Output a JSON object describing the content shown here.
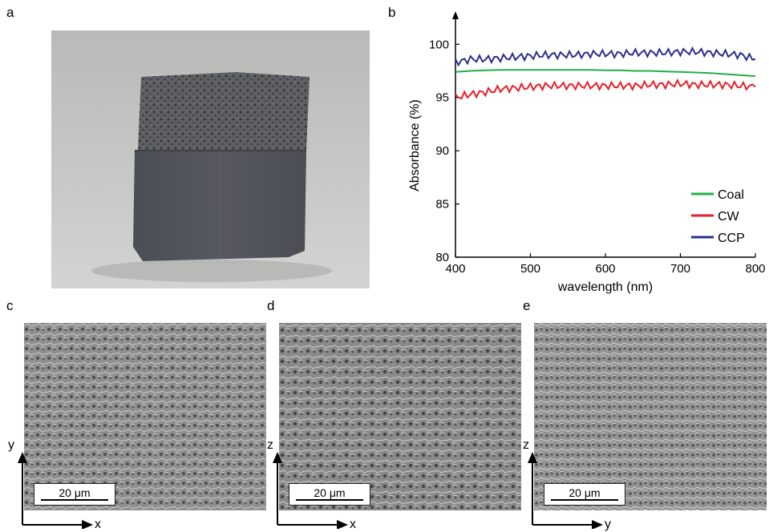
{
  "panels": {
    "a": {
      "label": "a"
    },
    "b": {
      "label": "b"
    },
    "c": {
      "label": "c",
      "scale": "20 μm",
      "axis_v": "y",
      "axis_h": "x"
    },
    "d": {
      "label": "d",
      "scale": "20 μm",
      "axis_v": "z",
      "axis_h": "x"
    },
    "e": {
      "label": "e",
      "scale": "20 μm",
      "axis_v": "z",
      "axis_h": "y"
    }
  },
  "chart_data": {
    "type": "line",
    "title": "",
    "xlabel": "wavelength (nm)",
    "ylabel": "Absorbance (%)",
    "xlim": [
      400,
      800
    ],
    "ylim": [
      80,
      101
    ],
    "xticks": [
      400,
      500,
      600,
      700,
      800
    ],
    "yticks": [
      80,
      85,
      90,
      95,
      100
    ],
    "grid": false,
    "legend_position": "bottom-right",
    "x": [
      400,
      420,
      440,
      460,
      480,
      500,
      520,
      540,
      560,
      580,
      600,
      620,
      640,
      660,
      680,
      700,
      720,
      740,
      760,
      780,
      800
    ],
    "series": [
      {
        "name": "Coal",
        "color": "#1fb04a",
        "values": [
          97.4,
          97.5,
          97.55,
          97.6,
          97.6,
          97.6,
          97.6,
          97.6,
          97.6,
          97.6,
          97.55,
          97.55,
          97.5,
          97.5,
          97.45,
          97.4,
          97.35,
          97.3,
          97.2,
          97.1,
          97.0
        ]
      },
      {
        "name": "CW",
        "color": "#e8202a",
        "values": [
          95.0,
          95.3,
          95.5,
          95.8,
          95.9,
          96.0,
          96.1,
          96.1,
          96.1,
          96.1,
          96.1,
          96.1,
          96.1,
          96.2,
          96.2,
          96.3,
          96.2,
          96.2,
          96.2,
          96.1,
          96.0
        ]
      },
      {
        "name": "CCP",
        "color": "#2b2f8c",
        "values": [
          98.3,
          98.6,
          98.6,
          98.7,
          98.8,
          98.9,
          99.0,
          99.0,
          99.0,
          99.1,
          99.1,
          99.1,
          99.2,
          99.2,
          99.2,
          99.3,
          99.3,
          99.2,
          99.1,
          99.0,
          98.6
        ]
      }
    ]
  }
}
